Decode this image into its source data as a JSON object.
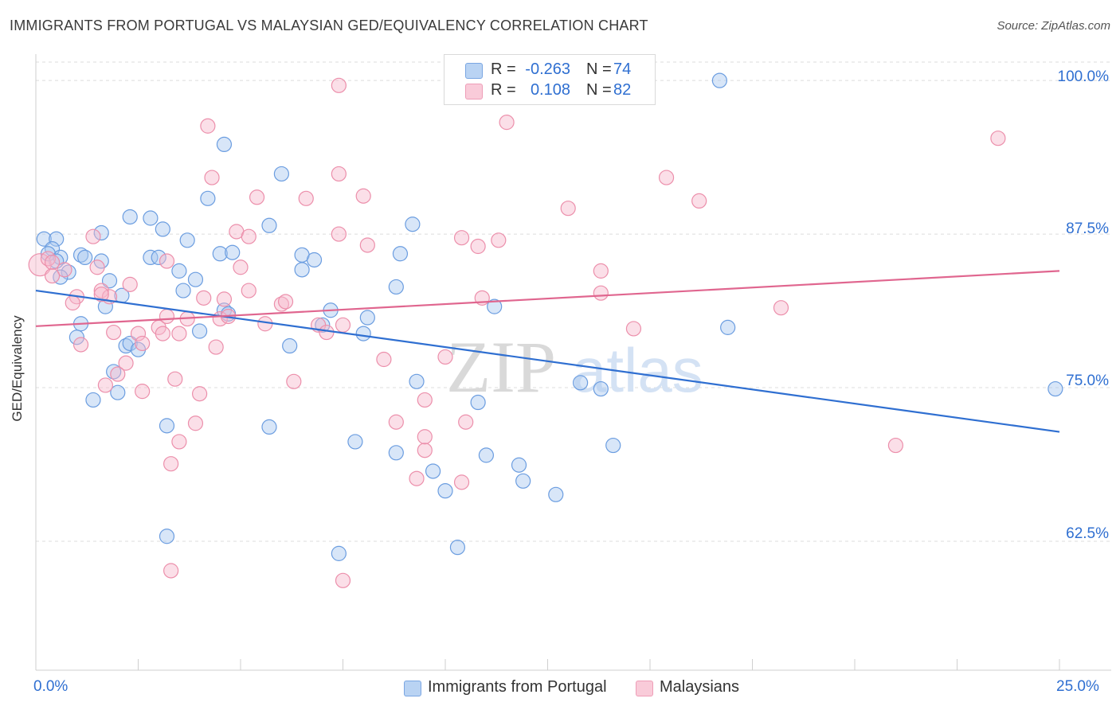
{
  "title": "IMMIGRANTS FROM PORTUGAL VS MALAYSIAN GED/EQUIVALENCY CORRELATION CHART",
  "source": "Source: ZipAtlas.com",
  "stats": {
    "row1": {
      "r_label": "R =",
      "r_value": "-0.263",
      "n_label": "N =",
      "n_value": "74"
    },
    "row2": {
      "r_label": "R =",
      "r_value": "0.108",
      "n_label": "N =",
      "n_value": "82"
    }
  },
  "legend": {
    "series1": "Immigrants from Portugal",
    "series2": "Malaysians"
  },
  "axes": {
    "ylabel": "GED/Equivalency",
    "x_min_label": "0.0%",
    "x_max_label": "25.0%",
    "y_ticks": [
      "100.0%",
      "87.5%",
      "75.0%",
      "62.5%"
    ]
  },
  "colors": {
    "blue_fill": "#a9c8f0",
    "blue_stroke": "#6b9de0",
    "blue_line": "#2f6fd1",
    "pink_fill": "#f6b9cc",
    "pink_stroke": "#ec8fab",
    "pink_line": "#e0668f",
    "axis_text": "#2f6fd1",
    "grid": "#dcdcdc",
    "watermark": "#d8d8d8"
  },
  "chart_data": {
    "type": "scatter",
    "title": "IMMIGRANTS FROM PORTUGAL VS MALAYSIAN GED/EQUIVALENCY CORRELATION CHART",
    "xlabel": "",
    "ylabel": "GED/Equivalency",
    "xlim": [
      0,
      25
    ],
    "ylim": [
      52,
      101.5
    ],
    "y_ticks": [
      100,
      87.5,
      75,
      62.5
    ],
    "grid": true,
    "legend_position": "bottom-center",
    "series": [
      {
        "name": "Immigrants from Portugal",
        "r": -0.263,
        "n": 74,
        "trend": [
          [
            0,
            82.9
          ],
          [
            25,
            71.4
          ]
        ],
        "points": [
          [
            0.2,
            87.1
          ],
          [
            0.5,
            87.1
          ],
          [
            0.4,
            86.3
          ],
          [
            0.3,
            85.9
          ],
          [
            0.6,
            85.6
          ],
          [
            0.5,
            85.3
          ],
          [
            0.8,
            84.4
          ],
          [
            0.6,
            84.0
          ],
          [
            1.1,
            85.8
          ],
          [
            1.2,
            85.6
          ],
          [
            1.6,
            85.3
          ],
          [
            1.6,
            87.6
          ],
          [
            1.8,
            83.7
          ],
          [
            1.7,
            81.6
          ],
          [
            2.1,
            82.5
          ],
          [
            1.1,
            80.2
          ],
          [
            1.0,
            79.1
          ],
          [
            2.2,
            78.4
          ],
          [
            2.3,
            78.6
          ],
          [
            2.5,
            78.1
          ],
          [
            1.9,
            76.3
          ],
          [
            2.0,
            74.6
          ],
          [
            1.4,
            74.0
          ],
          [
            2.3,
            88.9
          ],
          [
            2.8,
            88.8
          ],
          [
            3.1,
            87.9
          ],
          [
            3.7,
            87.0
          ],
          [
            4.2,
            90.4
          ],
          [
            4.6,
            94.8
          ],
          [
            2.8,
            85.6
          ],
          [
            3.0,
            85.6
          ],
          [
            3.5,
            84.5
          ],
          [
            3.6,
            82.9
          ],
          [
            3.9,
            83.8
          ],
          [
            4.5,
            85.9
          ],
          [
            4.8,
            86.0
          ],
          [
            4.6,
            81.3
          ],
          [
            4.7,
            81.0
          ],
          [
            4.0,
            79.6
          ],
          [
            6.0,
            92.4
          ],
          [
            5.7,
            88.2
          ],
          [
            6.5,
            85.8
          ],
          [
            6.5,
            84.6
          ],
          [
            6.8,
            85.4
          ],
          [
            7.2,
            81.3
          ],
          [
            6.2,
            78.4
          ],
          [
            7.0,
            80.1
          ],
          [
            8.1,
            80.7
          ],
          [
            8.0,
            79.4
          ],
          [
            8.8,
            83.2
          ],
          [
            8.9,
            85.9
          ],
          [
            9.2,
            88.3
          ],
          [
            9.3,
            75.5
          ],
          [
            7.8,
            70.6
          ],
          [
            8.8,
            69.7
          ],
          [
            9.7,
            68.2
          ],
          [
            10.3,
            62.0
          ],
          [
            10.8,
            73.8
          ],
          [
            11.2,
            81.6
          ],
          [
            11.0,
            69.5
          ],
          [
            11.8,
            68.7
          ],
          [
            11.9,
            67.4
          ],
          [
            12.7,
            66.3
          ],
          [
            10.0,
            66.6
          ],
          [
            13.3,
            75.4
          ],
          [
            13.8,
            74.9
          ],
          [
            14.1,
            70.3
          ],
          [
            16.7,
            100.0
          ],
          [
            16.9,
            79.9
          ],
          [
            24.9,
            74.9
          ],
          [
            3.2,
            71.9
          ],
          [
            3.2,
            62.9
          ],
          [
            5.7,
            71.8
          ],
          [
            7.4,
            61.5
          ]
        ]
      },
      {
        "name": "Malaysians",
        "r": 0.108,
        "n": 82,
        "trend": [
          [
            0,
            80.0
          ],
          [
            25,
            84.5
          ]
        ],
        "points": [
          [
            0.1,
            85.0
          ],
          [
            0.3,
            85.5
          ],
          [
            0.4,
            85.2
          ],
          [
            0.7,
            84.6
          ],
          [
            0.4,
            84.1
          ],
          [
            1.0,
            82.4
          ],
          [
            0.9,
            81.9
          ],
          [
            1.1,
            78.5
          ],
          [
            1.4,
            87.3
          ],
          [
            1.5,
            84.8
          ],
          [
            1.6,
            82.9
          ],
          [
            1.8,
            82.4
          ],
          [
            1.6,
            82.6
          ],
          [
            2.3,
            83.4
          ],
          [
            1.9,
            79.5
          ],
          [
            2.5,
            79.4
          ],
          [
            2.6,
            78.6
          ],
          [
            2.2,
            77.0
          ],
          [
            2.0,
            76.1
          ],
          [
            1.7,
            75.2
          ],
          [
            2.6,
            74.7
          ],
          [
            3.0,
            79.9
          ],
          [
            3.1,
            79.4
          ],
          [
            3.2,
            80.8
          ],
          [
            3.5,
            79.4
          ],
          [
            3.2,
            85.3
          ],
          [
            4.1,
            82.3
          ],
          [
            4.5,
            80.6
          ],
          [
            4.7,
            80.8
          ],
          [
            4.6,
            82.2
          ],
          [
            5.0,
            84.8
          ],
          [
            5.2,
            82.9
          ],
          [
            5.6,
            80.2
          ],
          [
            6.0,
            81.8
          ],
          [
            6.1,
            82.0
          ],
          [
            4.9,
            87.7
          ],
          [
            5.2,
            87.3
          ],
          [
            5.4,
            90.5
          ],
          [
            4.3,
            92.1
          ],
          [
            4.2,
            96.3
          ],
          [
            4.4,
            78.3
          ],
          [
            4.0,
            74.5
          ],
          [
            3.9,
            72.1
          ],
          [
            3.5,
            70.6
          ],
          [
            3.3,
            68.8
          ],
          [
            3.4,
            75.7
          ],
          [
            3.7,
            80.6
          ],
          [
            6.3,
            75.5
          ],
          [
            6.6,
            90.4
          ],
          [
            6.9,
            80.1
          ],
          [
            7.1,
            79.5
          ],
          [
            7.5,
            80.1
          ],
          [
            7.4,
            87.5
          ],
          [
            7.4,
            92.4
          ],
          [
            8.0,
            90.6
          ],
          [
            8.1,
            86.6
          ],
          [
            7.4,
            99.6
          ],
          [
            8.5,
            77.3
          ],
          [
            9.5,
            74.0
          ],
          [
            8.8,
            72.2
          ],
          [
            9.5,
            69.9
          ],
          [
            9.3,
            67.6
          ],
          [
            9.5,
            71.0
          ],
          [
            10.0,
            77.5
          ],
          [
            10.5,
            72.2
          ],
          [
            10.4,
            67.3
          ],
          [
            10.8,
            86.5
          ],
          [
            10.9,
            82.3
          ],
          [
            11.3,
            87.0
          ],
          [
            10.4,
            87.2
          ],
          [
            11.5,
            96.6
          ],
          [
            13.0,
            89.6
          ],
          [
            13.8,
            82.7
          ],
          [
            13.8,
            84.5
          ],
          [
            14.6,
            79.8
          ],
          [
            15.4,
            92.1
          ],
          [
            16.2,
            90.2
          ],
          [
            18.2,
            81.5
          ],
          [
            21.0,
            70.3
          ],
          [
            23.5,
            95.3
          ],
          [
            3.3,
            60.1
          ],
          [
            7.5,
            59.3
          ]
        ]
      }
    ]
  }
}
